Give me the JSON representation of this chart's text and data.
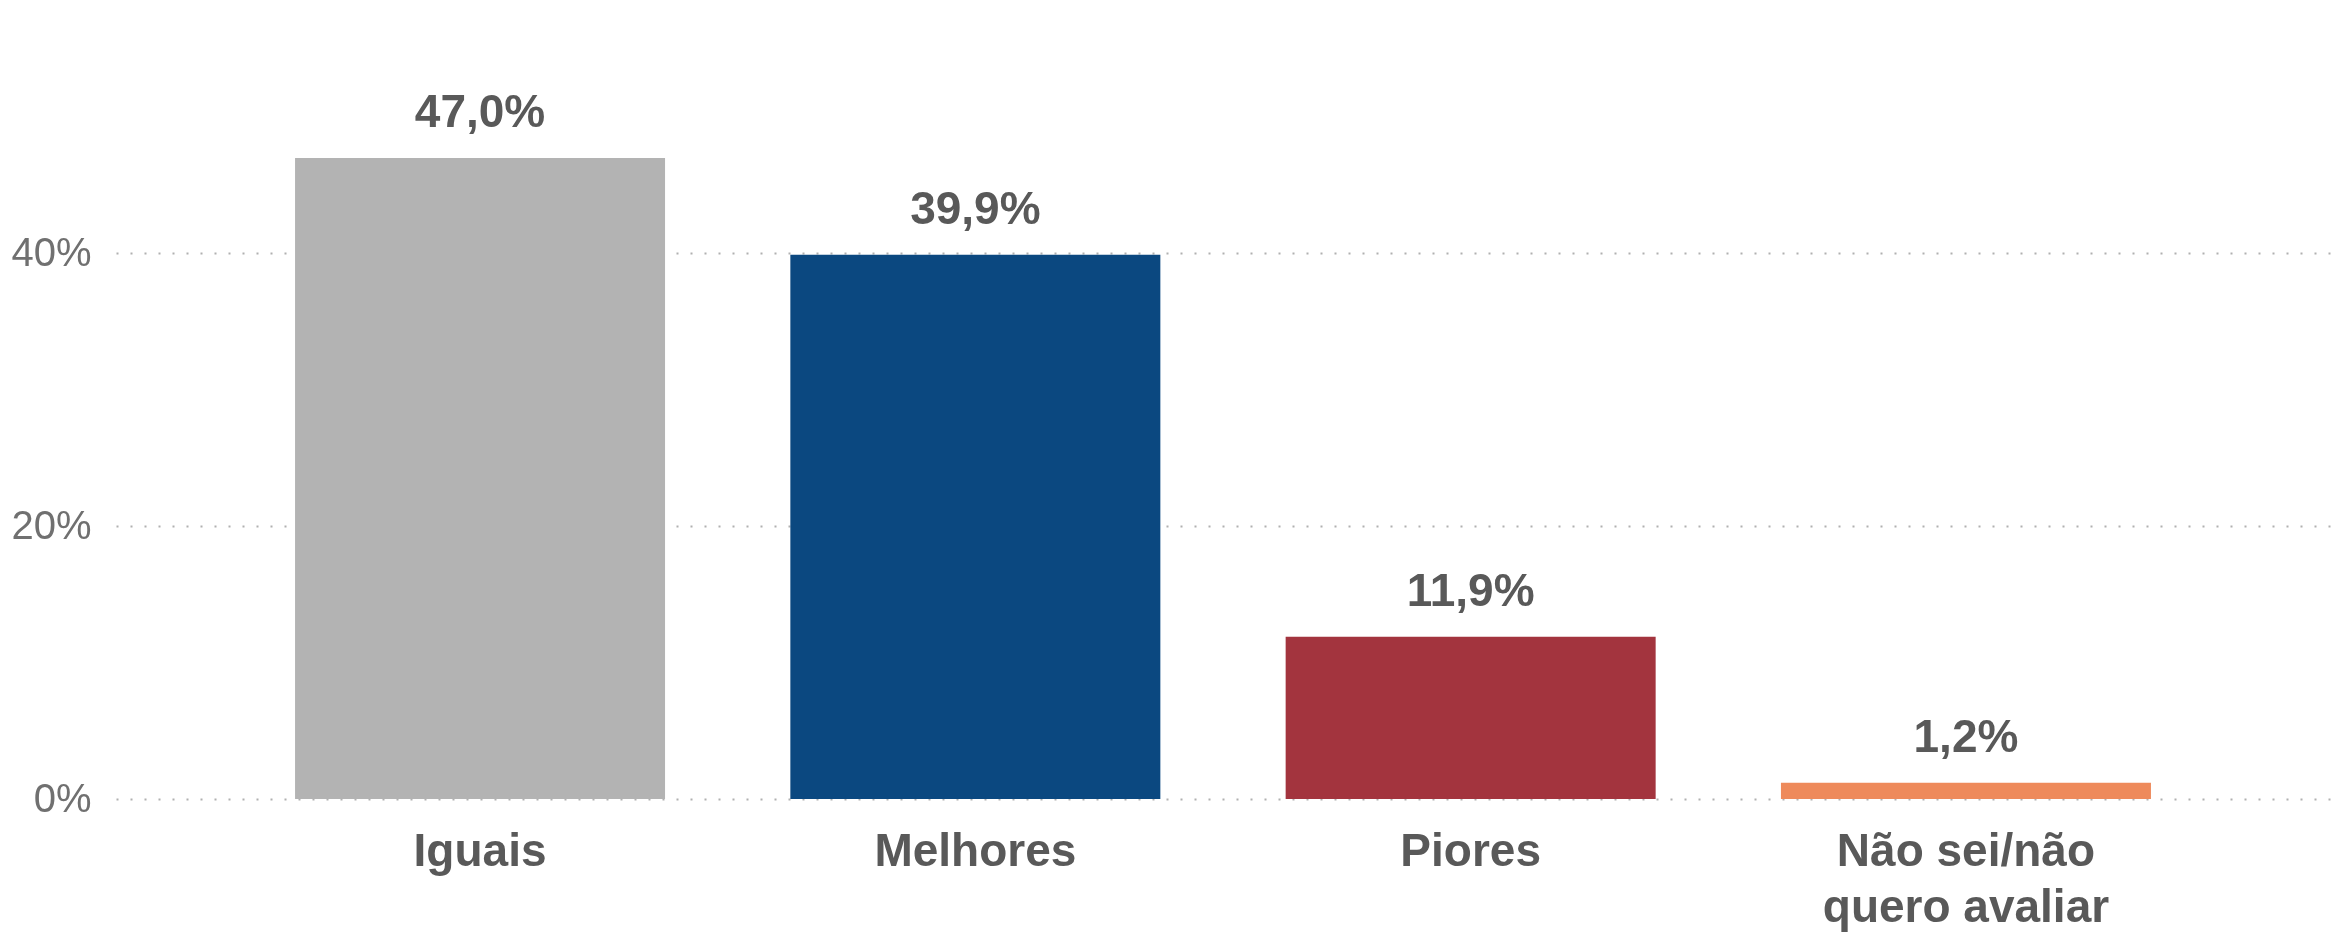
{
  "chart_data": {
    "type": "bar",
    "categories": [
      "Iguais",
      "Melhores",
      "Piores",
      "Não sei/não quero avaliar"
    ],
    "values": [
      47.0,
      39.9,
      11.9,
      1.2
    ],
    "colors": [
      "#b3b3b3",
      "#0b4880",
      "#a3343e",
      "#ee8a5b"
    ],
    "value_labels": [
      "47,0%",
      "39,9%",
      "11,9%",
      "1,2%"
    ],
    "ylim": [
      0,
      47
    ],
    "yticks": [
      {
        "value": 0,
        "label": "0%"
      },
      {
        "value": 20,
        "label": "20%"
      },
      {
        "value": 40,
        "label": "40%"
      }
    ],
    "grid": "y"
  }
}
